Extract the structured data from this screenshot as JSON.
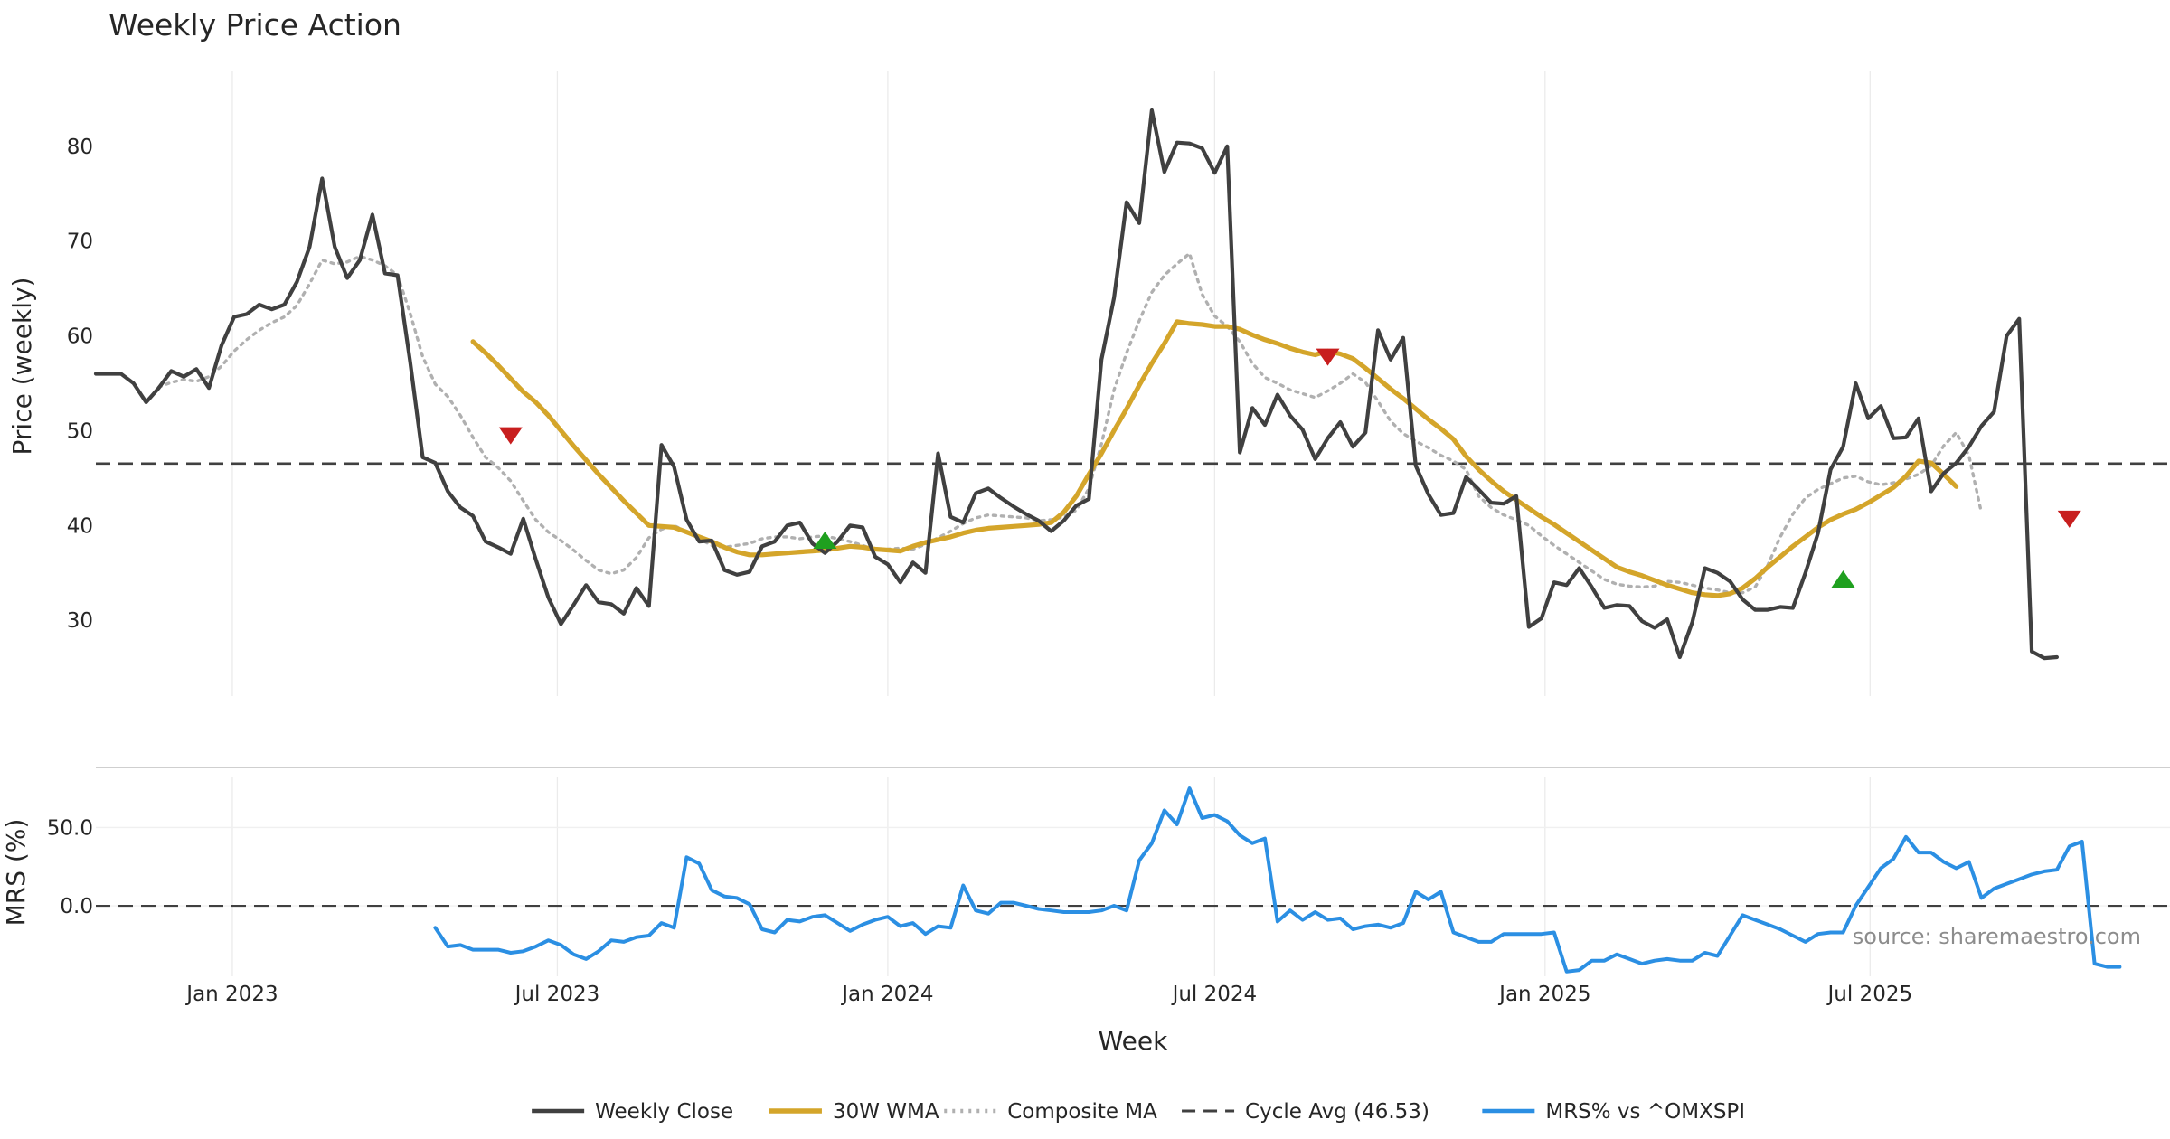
{
  "chart_data": [
    {
      "type": "line",
      "title": "Weekly Price Action",
      "ylabel": "Price (weekly)",
      "ylim": [
        22,
        88
      ],
      "yticks": [
        30,
        40,
        50,
        60,
        70,
        80
      ],
      "xlim": [
        "2022-10-17",
        "2025-12-15"
      ],
      "xticks": [
        "2023-01-01",
        "2023-07-01",
        "2024-01-01",
        "2024-07-01",
        "2025-01-01",
        "2025-07-01"
      ],
      "xtick_labels": [
        "Jan 2023",
        "Jul 2023",
        "Jan 2024",
        "Jul 2024",
        "Jan 2025",
        "Jul 2025"
      ],
      "grid": "vertical",
      "cycle_avg": 46.53,
      "series": [
        {
          "name": "Weekly Close",
          "color": "#404040",
          "start": "2022-10-17",
          "interval_days": 7,
          "values": [
            56.0,
            56.0,
            56.0,
            55.0,
            53.0,
            54.5,
            56.3,
            55.7,
            56.5,
            54.5,
            59.0,
            62.0,
            62.3,
            63.3,
            62.8,
            63.3,
            65.7,
            69.4,
            76.6,
            69.4,
            66.1,
            68.0,
            72.8,
            66.6,
            66.4,
            57.3,
            47.2,
            46.6,
            43.6,
            41.9,
            41.0,
            38.3,
            37.7,
            37.0,
            40.7,
            36.4,
            32.4,
            29.6,
            31.6,
            33.7,
            31.9,
            31.7,
            30.7,
            33.4,
            31.5,
            48.5,
            46.2,
            40.6,
            38.3,
            38.4,
            35.3,
            34.8,
            35.1,
            37.8,
            38.3,
            40.0,
            40.3,
            38.1,
            37.1,
            38.3,
            40.0,
            39.8,
            36.7,
            35.9,
            34.0,
            36.1,
            35.0,
            47.6,
            40.9,
            40.3,
            43.4,
            43.9,
            42.9,
            42.0,
            41.2,
            40.5,
            39.4,
            40.5,
            42.1,
            42.8,
            57.5,
            64.0,
            74.1,
            71.9,
            83.8,
            77.3,
            80.4,
            80.3,
            79.8,
            77.2,
            80.0,
            47.7,
            52.4,
            50.6,
            53.8,
            51.6,
            50.1,
            47.0,
            49.2,
            50.9,
            48.3,
            49.8,
            60.6,
            57.5,
            59.8,
            46.3,
            43.3,
            41.1,
            41.3,
            45.1,
            43.8,
            42.4,
            42.3,
            43.1,
            29.3,
            30.2,
            34.0,
            33.7,
            35.5,
            33.5,
            31.3,
            31.6,
            31.5,
            29.9,
            29.2,
            30.1,
            26.1,
            29.8,
            35.5,
            35.0,
            34.1,
            32.2,
            31.1,
            31.1,
            31.4,
            31.3,
            35.0,
            39.2,
            45.9,
            48.3,
            55.0,
            51.3,
            52.6,
            49.2,
            49.3,
            51.3,
            43.6,
            45.5,
            46.6,
            48.3,
            50.5,
            52.0,
            60.0,
            61.8,
            26.7,
            26.0,
            26.1
          ]
        },
        {
          "name": "30W WMA",
          "color": "#d4a52a",
          "start": "2023-05-15",
          "interval_days": 7,
          "values": [
            59.4,
            58.2,
            56.9,
            55.5,
            54.1,
            53.0,
            51.6,
            50.0,
            48.4,
            46.9,
            45.4,
            44.0,
            42.6,
            41.3,
            40.0,
            39.9,
            39.8,
            39.3,
            38.8,
            38.3,
            37.7,
            37.2,
            36.9,
            36.9,
            37.0,
            37.1,
            37.2,
            37.3,
            37.4,
            37.6,
            37.8,
            37.7,
            37.5,
            37.4,
            37.3,
            37.8,
            38.2,
            38.5,
            38.8,
            39.2,
            39.5,
            39.7,
            39.8,
            39.9,
            40.0,
            40.1,
            40.3,
            41.4,
            43.1,
            45.4,
            47.6,
            50.0,
            52.3,
            54.8,
            57.1,
            59.2,
            61.5,
            61.3,
            61.2,
            61.0,
            61.0,
            60.7,
            60.1,
            59.6,
            59.2,
            58.7,
            58.3,
            58.0,
            58.4,
            58.1,
            57.6,
            56.6,
            55.5,
            54.4,
            53.4,
            52.3,
            51.2,
            50.2,
            49.1,
            47.3,
            45.9,
            44.7,
            43.6,
            42.7,
            41.8,
            40.9,
            40.1,
            39.2,
            38.3,
            37.4,
            36.5,
            35.6,
            35.1,
            34.7,
            34.2,
            33.7,
            33.3,
            32.9,
            32.7,
            32.6,
            32.8,
            33.4,
            34.4,
            35.6,
            36.7,
            37.8,
            38.8,
            39.8,
            40.6,
            41.2,
            41.7,
            42.4,
            43.2,
            44.0,
            45.2,
            46.8,
            46.6,
            45.4,
            44.1
          ]
        },
        {
          "name": "Composite MA",
          "color": "#b0b0b0",
          "start": "2022-11-21",
          "interval_days": 7,
          "values": [
            54.6,
            55.1,
            55.4,
            55.2,
            55.7,
            56.8,
            58.4,
            59.6,
            60.6,
            61.4,
            62.0,
            63.2,
            65.5,
            68.0,
            67.6,
            67.8,
            68.4,
            68.0,
            67.4,
            66.4,
            62.4,
            57.8,
            54.9,
            53.6,
            51.6,
            49.3,
            47.2,
            46.1,
            44.7,
            42.6,
            40.6,
            39.3,
            38.4,
            37.4,
            36.3,
            35.3,
            34.9,
            35.3,
            36.6,
            38.7,
            39.6,
            40.0,
            39.3,
            38.6,
            37.9,
            37.7,
            37.9,
            38.1,
            38.6,
            38.8,
            38.8,
            38.6,
            38.8,
            38.9,
            38.6,
            38.3,
            37.9,
            37.4,
            37.5,
            37.6,
            37.5,
            38.0,
            38.7,
            39.4,
            40.2,
            40.8,
            41.1,
            41.0,
            40.9,
            40.8,
            40.5,
            40.6,
            40.9,
            41.6,
            43.9,
            48.6,
            54.3,
            58.2,
            61.6,
            64.6,
            66.4,
            67.6,
            68.7,
            64.4,
            62.1,
            61.0,
            59.4,
            57.1,
            55.6,
            55.0,
            54.3,
            53.9,
            53.5,
            54.2,
            55.0,
            56.0,
            55.1,
            53.1,
            51.0,
            49.7,
            48.9,
            48.2,
            47.4,
            46.8,
            45.9,
            43.1,
            41.9,
            41.1,
            40.6,
            40.0,
            38.9,
            37.9,
            37.0,
            36.1,
            35.2,
            34.3,
            33.8,
            33.6,
            33.5,
            33.6,
            34.1,
            34.0,
            33.7,
            33.4,
            33.2,
            32.9,
            32.9,
            33.5,
            35.8,
            38.8,
            41.2,
            42.9,
            43.8,
            44.4,
            45.0,
            45.2,
            44.6,
            44.3,
            44.5,
            44.9,
            45.4,
            46.3,
            48.4,
            49.8,
            47.4,
            41.3
          ]
        }
      ],
      "markers": [
        {
          "type": "sell",
          "color": "#c81e1e",
          "date": "2023-06-05",
          "value": 49.5
        },
        {
          "type": "buy",
          "color": "#1fa01f",
          "date": "2023-11-27",
          "value": 38.4
        },
        {
          "type": "sell",
          "color": "#c81e1e",
          "date": "2024-09-02",
          "value": 57.8
        },
        {
          "type": "buy",
          "color": "#1fa01f",
          "date": "2025-06-16",
          "value": 34.3
        },
        {
          "type": "sell",
          "color": "#c81e1e",
          "date": "2025-10-20",
          "value": 40.7
        }
      ]
    },
    {
      "type": "line",
      "ylabel": "MRS (%)",
      "ylim": [
        -45,
        82
      ],
      "yticks": [
        0,
        50
      ],
      "ytick_labels": [
        "0.0",
        "50.0"
      ],
      "grid": "vertical",
      "series": [
        {
          "name": "MRS% vs ^OMXSPI",
          "color": "#2b8fe3",
          "start": "2023-04-24",
          "interval_days": 7,
          "values": [
            -14,
            -26,
            -25,
            -28,
            -28,
            -28,
            -30,
            -29,
            -26,
            -22,
            -25,
            -31,
            -34,
            -29,
            -22,
            -23,
            -20,
            -19,
            -11,
            -14,
            31,
            27,
            10,
            6,
            5,
            1,
            -15,
            -17,
            -9,
            -10,
            -7,
            -6,
            -11,
            -16,
            -12,
            -9,
            -7,
            -13,
            -11,
            -18,
            -13,
            -14,
            13,
            -3,
            -5,
            2,
            2,
            0,
            -2,
            -3,
            -4,
            -4,
            -4,
            -3,
            0,
            -3,
            29,
            40,
            61,
            52,
            75,
            56,
            58,
            54,
            45,
            40,
            43,
            -10,
            -3,
            -9,
            -4,
            -9,
            -8,
            -15,
            -13,
            -12,
            -14,
            -11,
            9,
            4,
            9,
            -17,
            -20,
            -23,
            -23,
            -18,
            -18,
            -18,
            -18,
            -17,
            -42,
            -41,
            -35,
            -35,
            -31,
            -34,
            -37,
            -35,
            -34,
            -35,
            -35,
            -30,
            -32,
            -19,
            -6,
            -9,
            -12,
            -15,
            -19,
            -23,
            -18,
            -17,
            -17,
            0,
            12,
            24,
            30,
            44,
            34,
            34,
            28,
            24,
            28,
            5,
            11,
            14,
            17,
            20,
            22,
            23,
            38,
            41,
            -37,
            -39,
            -39
          ]
        }
      ]
    }
  ],
  "source": "source: sharemaestro.com",
  "xlabel": "Week",
  "legend": {
    "placement": "bottom",
    "items": [
      {
        "label": "Weekly Close",
        "color": "#404040",
        "style": "solid"
      },
      {
        "label": "30W WMA",
        "color": "#d4a52a",
        "style": "solid"
      },
      {
        "label": "Composite MA",
        "color": "#b0b0b0",
        "style": "dotted"
      },
      {
        "label": "Cycle Avg (46.53)",
        "color": "#404040",
        "style": "dashed"
      },
      {
        "label": "MRS% vs ^OMXSPI",
        "color": "#2b8fe3",
        "style": "solid"
      }
    ]
  }
}
